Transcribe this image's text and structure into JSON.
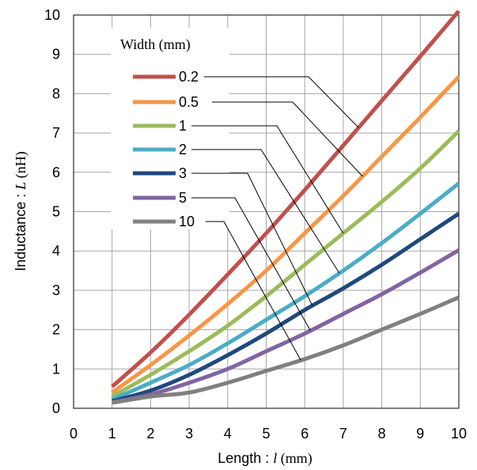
{
  "chart_data": {
    "type": "line",
    "xlabel": {
      "prefix": "Length : ",
      "symbol": "l",
      "unit": " (mm)"
    },
    "ylabel": {
      "prefix": "Inductance : ",
      "symbol": "L",
      "unit": " (nH)"
    },
    "xlim": [
      0,
      10
    ],
    "ylim": [
      0,
      10
    ],
    "xticks": [
      "0",
      "1",
      "2",
      "3",
      "4",
      "5",
      "6",
      "7",
      "8",
      "9",
      "10"
    ],
    "yticks": [
      "0",
      "1",
      "2",
      "3",
      "4",
      "5",
      "6",
      "7",
      "8",
      "9",
      "10"
    ],
    "grid": true,
    "legend": {
      "title": "Width (mm)",
      "placement": "top-left"
    },
    "x": [
      1,
      2,
      3,
      4,
      5,
      6,
      7,
      8,
      9,
      10
    ],
    "series": [
      {
        "name": "0.2",
        "color": "#c0504d",
        "values": [
          0.55,
          1.42,
          2.38,
          3.4,
          4.45,
          5.55,
          6.68,
          7.82,
          8.95,
          10.1
        ]
      },
      {
        "name": "0.5",
        "color": "#f79646",
        "values": [
          0.4,
          1.1,
          1.85,
          2.65,
          3.5,
          4.45,
          5.4,
          6.4,
          7.4,
          8.43
        ]
      },
      {
        "name": "1",
        "color": "#9bbb59",
        "values": [
          0.3,
          0.85,
          1.45,
          2.1,
          2.85,
          3.65,
          4.45,
          5.25,
          6.1,
          7.05
        ]
      },
      {
        "name": "2",
        "color": "#4bacc6",
        "values": [
          0.22,
          0.65,
          1.1,
          1.65,
          2.25,
          2.85,
          3.5,
          4.2,
          4.95,
          5.72
        ]
      },
      {
        "name": "3",
        "color": "#1f497d",
        "values": [
          0.18,
          0.45,
          0.85,
          1.35,
          1.9,
          2.5,
          3.05,
          3.65,
          4.3,
          4.95
        ]
      },
      {
        "name": "5",
        "color": "#8064a2",
        "values": [
          0.15,
          0.35,
          0.65,
          1.0,
          1.45,
          1.9,
          2.4,
          2.9,
          3.45,
          4.02
        ]
      },
      {
        "name": "10",
        "color": "#808080",
        "values": [
          0.14,
          0.3,
          0.4,
          0.65,
          0.95,
          1.25,
          1.6,
          2.0,
          2.4,
          2.82
        ]
      }
    ]
  }
}
